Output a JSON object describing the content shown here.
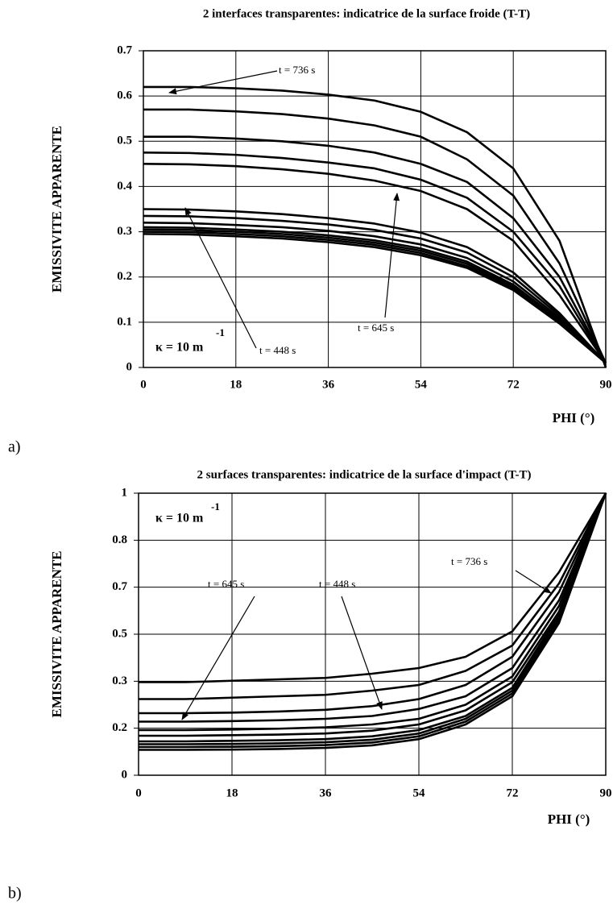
{
  "chart_data": [
    {
      "type": "line",
      "title": "2 interfaces transparentes: indicatrice de la surface froide (T-T)",
      "x_label": "PHI (°)",
      "y_label": "EMISSIVITE APPARENTE",
      "xlim": [
        0,
        90
      ],
      "ylim": [
        0,
        0.7
      ],
      "xticks": [
        0,
        18,
        36,
        54,
        72,
        90
      ],
      "yticks": [
        0,
        0.1,
        0.2,
        0.3,
        0.4,
        0.5,
        0.6,
        0.7
      ],
      "grid": true,
      "x": [
        0,
        9,
        18,
        27,
        36,
        45,
        54,
        63,
        72,
        81,
        90
      ],
      "series": [
        {
          "color": "#000",
          "values": [
            0.62,
            0.62,
            0.617,
            0.612,
            0.603,
            0.59,
            0.565,
            0.52,
            0.44,
            0.28,
            0
          ]
        },
        {
          "color": "#000",
          "values": [
            0.57,
            0.57,
            0.566,
            0.56,
            0.55,
            0.535,
            0.51,
            0.46,
            0.38,
            0.23,
            0.01
          ]
        },
        {
          "color": "#000",
          "values": [
            0.51,
            0.51,
            0.506,
            0.5,
            0.49,
            0.475,
            0.45,
            0.41,
            0.33,
            0.2,
            0.01
          ]
        },
        {
          "color": "#000",
          "values": [
            0.475,
            0.474,
            0.47,
            0.463,
            0.453,
            0.44,
            0.415,
            0.375,
            0.3,
            0.18,
            0.01
          ]
        },
        {
          "color": "#000",
          "values": [
            0.45,
            0.449,
            0.445,
            0.438,
            0.428,
            0.413,
            0.39,
            0.35,
            0.28,
            0.16,
            0.01
          ]
        },
        {
          "color": "#000",
          "values": [
            0.35,
            0.349,
            0.345,
            0.339,
            0.33,
            0.318,
            0.298,
            0.266,
            0.21,
            0.12,
            0.01
          ]
        },
        {
          "color": "#000",
          "values": [
            0.335,
            0.334,
            0.33,
            0.324,
            0.316,
            0.304,
            0.285,
            0.254,
            0.2,
            0.115,
            0.01
          ]
        },
        {
          "color": "#000",
          "values": [
            0.32,
            0.319,
            0.315,
            0.31,
            0.302,
            0.29,
            0.272,
            0.242,
            0.19,
            0.11,
            0.01
          ]
        },
        {
          "color": "#000",
          "values": [
            0.31,
            0.309,
            0.305,
            0.3,
            0.292,
            0.281,
            0.263,
            0.234,
            0.183,
            0.105,
            0.01
          ]
        },
        {
          "color": "#000",
          "values": [
            0.305,
            0.304,
            0.3,
            0.295,
            0.287,
            0.276,
            0.258,
            0.229,
            0.179,
            0.102,
            0.01
          ]
        },
        {
          "color": "#000",
          "values": [
            0.3,
            0.299,
            0.295,
            0.29,
            0.282,
            0.271,
            0.253,
            0.224,
            0.175,
            0.1,
            0.01
          ]
        },
        {
          "color": "#000",
          "values": [
            0.295,
            0.294,
            0.29,
            0.285,
            0.277,
            0.266,
            0.248,
            0.22,
            0.171,
            0.097,
            0.01
          ]
        }
      ],
      "annotations": [
        "t = 736 s",
        "t = 448 s",
        "t = 645 s"
      ],
      "kappa": {
        "text": "κ = 10 m",
        "superscript": "-1"
      }
    },
    {
      "type": "line",
      "title": "2 surfaces transparentes: indicatrice de la surface d'impact (T-T)",
      "x_label": "PHI (°)",
      "y_label": "EMISSIVITE APPARENTE",
      "xlim": [
        0,
        90
      ],
      "ylim": [
        0,
        1
      ],
      "xticks": [
        0,
        18,
        36,
        54,
        72,
        90
      ],
      "yticks": [
        0,
        {
          "value": 0.1667,
          "label": "0.2"
        },
        {
          "value": 0.3333,
          "label": "0.3"
        },
        0.5,
        {
          "value": 0.6667,
          "label": "0.7"
        },
        {
          "value": 0.8333,
          "label": "0.8"
        },
        1
      ],
      "grid": true,
      "x": [
        0,
        9,
        18,
        27,
        36,
        45,
        54,
        63,
        72,
        81,
        90
      ],
      "series": [
        {
          "color": "#000",
          "values": [
            0.33,
            0.33,
            0.335,
            0.34,
            0.345,
            0.36,
            0.38,
            0.42,
            0.51,
            0.72,
            1
          ]
        },
        {
          "color": "#000",
          "values": [
            0.27,
            0.27,
            0.275,
            0.28,
            0.285,
            0.3,
            0.32,
            0.37,
            0.46,
            0.68,
            1
          ]
        },
        {
          "color": "#000",
          "values": [
            0.22,
            0.22,
            0.222,
            0.226,
            0.232,
            0.245,
            0.27,
            0.32,
            0.42,
            0.65,
            1
          ]
        },
        {
          "color": "#000",
          "values": [
            0.19,
            0.19,
            0.192,
            0.195,
            0.2,
            0.21,
            0.235,
            0.28,
            0.38,
            0.62,
            1
          ]
        },
        {
          "color": "#000",
          "values": [
            0.16,
            0.16,
            0.162,
            0.165,
            0.17,
            0.18,
            0.2,
            0.25,
            0.35,
            0.6,
            1
          ]
        },
        {
          "color": "#000",
          "values": [
            0.14,
            0.14,
            0.142,
            0.144,
            0.148,
            0.158,
            0.18,
            0.23,
            0.33,
            0.58,
            1
          ]
        },
        {
          "color": "#000",
          "values": [
            0.12,
            0.12,
            0.122,
            0.124,
            0.128,
            0.138,
            0.16,
            0.21,
            0.31,
            0.57,
            1
          ]
        },
        {
          "color": "#000",
          "values": [
            0.11,
            0.11,
            0.111,
            0.113,
            0.117,
            0.126,
            0.148,
            0.2,
            0.3,
            0.56,
            1
          ]
        },
        {
          "color": "#000",
          "values": [
            0.1,
            0.1,
            0.101,
            0.103,
            0.107,
            0.116,
            0.138,
            0.19,
            0.29,
            0.55,
            1
          ]
        },
        {
          "color": "#000",
          "values": [
            0.09,
            0.09,
            0.091,
            0.093,
            0.097,
            0.106,
            0.128,
            0.18,
            0.28,
            0.54,
            1
          ]
        }
      ],
      "annotations": [
        "t = 736 s",
        "t = 645 s",
        "t = 448 s"
      ],
      "kappa": {
        "text": "κ = 10 m",
        "superscript": "-1"
      }
    }
  ],
  "panel_labels": [
    "a)",
    "b)"
  ]
}
